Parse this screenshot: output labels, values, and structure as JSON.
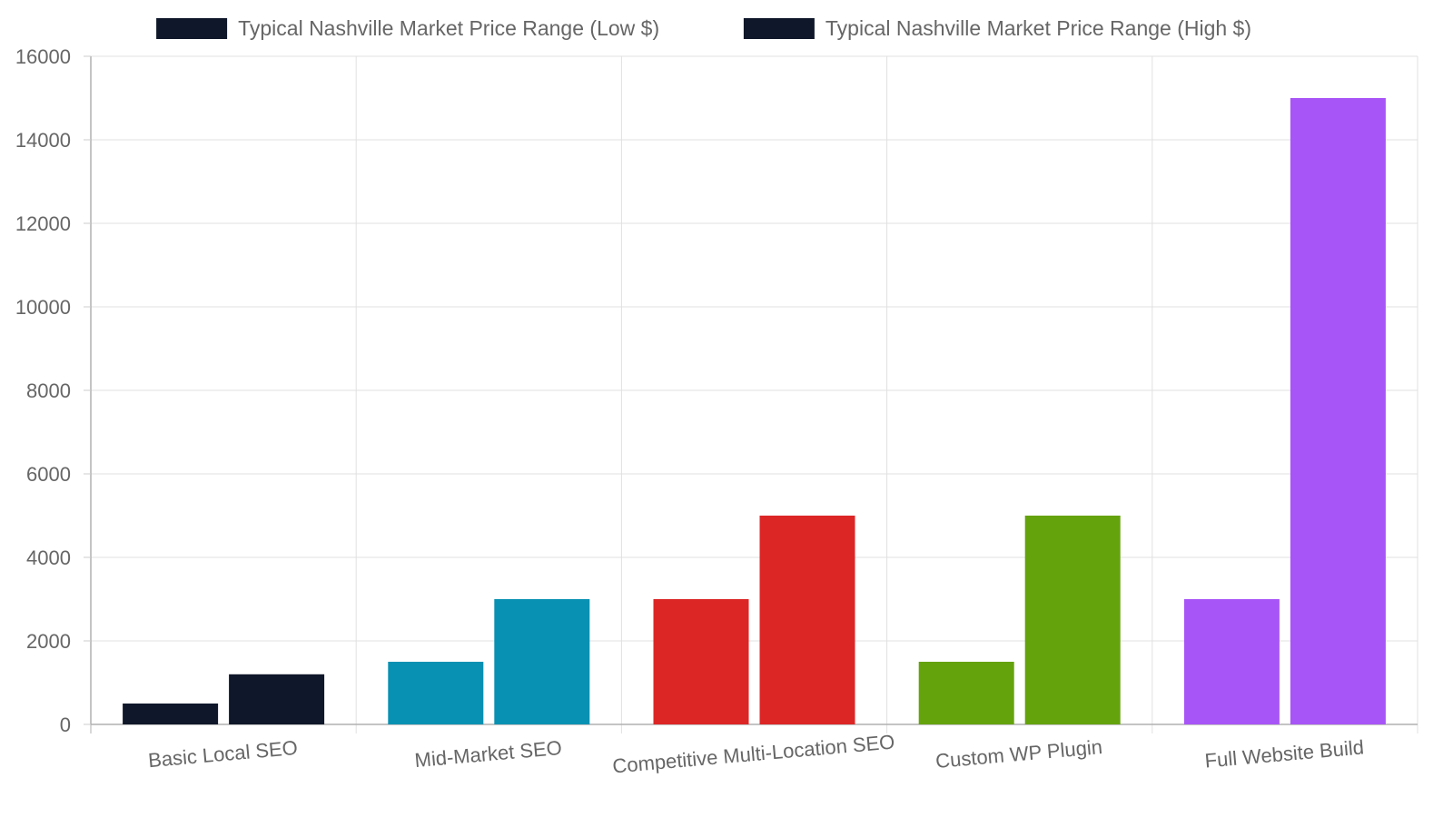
{
  "chart_data": {
    "type": "bar",
    "categories": [
      "Basic Local SEO",
      "Mid-Market SEO",
      "Competitive Multi-Location SEO",
      "Custom WP Plugin",
      "Full Website Build"
    ],
    "series": [
      {
        "name": "Typical Nashville Market Price Range (Low $)",
        "values": [
          500,
          1500,
          3000,
          1500,
          3000
        ]
      },
      {
        "name": "Typical Nashville Market Price Range (High $)",
        "values": [
          1200,
          3000,
          5000,
          5000,
          15000
        ]
      }
    ],
    "bar_colors": [
      "#0f172a",
      "#0891b2",
      "#dc2626",
      "#65a30d",
      "#a855f7"
    ],
    "legend_color": "#0f172a",
    "legend_position": "top",
    "ylim": [
      0,
      16000
    ],
    "yticks": [
      0,
      2000,
      4000,
      6000,
      8000,
      10000,
      12000,
      14000,
      16000
    ],
    "grid": true,
    "xlabel": "",
    "ylabel": "",
    "title": ""
  }
}
